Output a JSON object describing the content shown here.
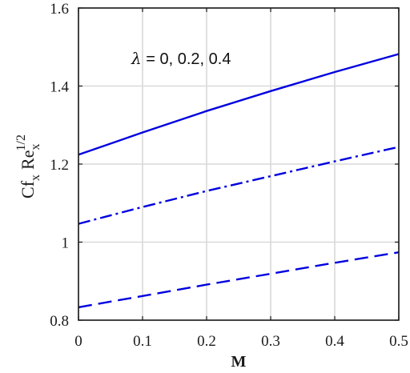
{
  "chart_data": {
    "type": "line",
    "xlabel": "M",
    "ylabel": {
      "base": "Cf",
      "base_sub": "x",
      "re": "Re",
      "re_sub": "x",
      "re_sup": "1/2"
    },
    "xlim": [
      0,
      0.5
    ],
    "ylim": [
      0.8,
      1.6
    ],
    "xticks": [
      "0",
      "0.1",
      "0.2",
      "0.3",
      "0.4",
      "0.5"
    ],
    "xtick_values": [
      0,
      0.1,
      0.2,
      0.3,
      0.4,
      0.5
    ],
    "yticks": [
      "0.8",
      "1",
      "1.2",
      "1.4",
      "1.6"
    ],
    "ytick_values": [
      0.8,
      1.0,
      1.2,
      1.4,
      1.6
    ],
    "grid": true,
    "annotation": {
      "symbol": "λ",
      "text": " = 0, 0.2, 0.4"
    },
    "series": [
      {
        "style": "solid",
        "color": "#0000e0",
        "x": [
          0,
          0.1,
          0.2,
          0.3,
          0.4,
          0.5
        ],
        "y": [
          1.224,
          1.281,
          1.336,
          1.387,
          1.436,
          1.482
        ]
      },
      {
        "style": "dashdot",
        "color": "#0000e0",
        "x": [
          0,
          0.1,
          0.2,
          0.3,
          0.4,
          0.5
        ],
        "y": [
          1.047,
          1.09,
          1.131,
          1.169,
          1.207,
          1.244
        ]
      },
      {
        "style": "dashed",
        "color": "#0000e0",
        "x": [
          0,
          0.1,
          0.2,
          0.3,
          0.4,
          0.5
        ],
        "y": [
          0.833,
          0.862,
          0.891,
          0.919,
          0.947,
          0.974
        ]
      }
    ]
  }
}
